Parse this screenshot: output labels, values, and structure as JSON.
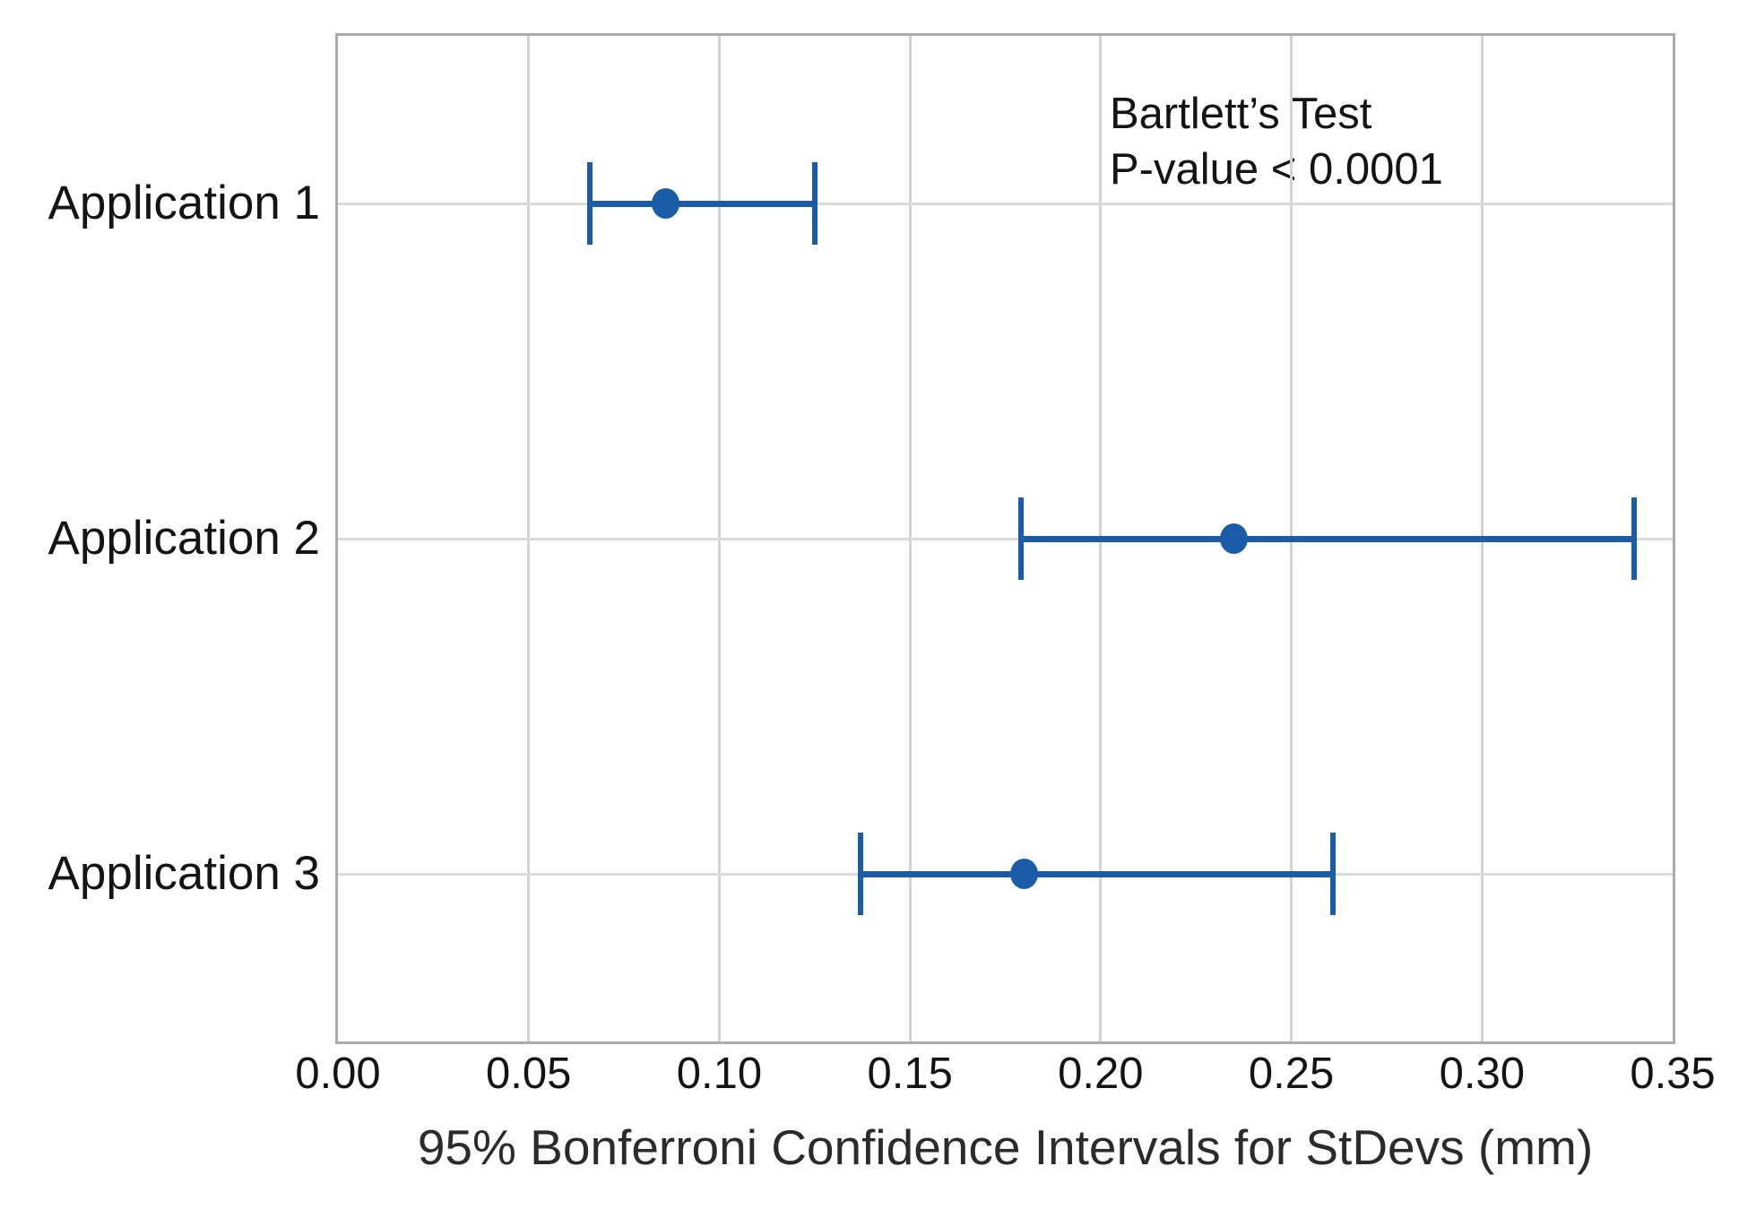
{
  "chart_data": {
    "type": "interval_plot",
    "title": "",
    "xlabel": "95% Bonferroni Confidence Intervals for StDevs (mm)",
    "ylabel": "",
    "categories": [
      "Application 1",
      "Application 2",
      "Application 3"
    ],
    "intervals": [
      {
        "category": "Application 1",
        "lower": 0.066,
        "stdev": 0.086,
        "upper": 0.125
      },
      {
        "category": "Application 2",
        "lower": 0.179,
        "stdev": 0.235,
        "upper": 0.34
      },
      {
        "category": "Application 3",
        "lower": 0.137,
        "stdev": 0.18,
        "upper": 0.261
      }
    ],
    "x_axis": {
      "min": 0.0,
      "max": 0.35,
      "tick_step": 0.05,
      "tick_labels": [
        "0.00",
        "0.05",
        "0.10",
        "0.15",
        "0.20",
        "0.25",
        "0.30",
        "0.35"
      ]
    },
    "annotation": {
      "line1": "Bartlett’s Test",
      "line2": "P-value < 0.0001"
    },
    "grid": true,
    "legend": "none",
    "colors": {
      "interval": "#1b5ca8",
      "gridline_vertical": "#d4d4d4",
      "gridline_horizontal": "#dadada",
      "frame": "#ababab",
      "text": "#141414"
    }
  }
}
